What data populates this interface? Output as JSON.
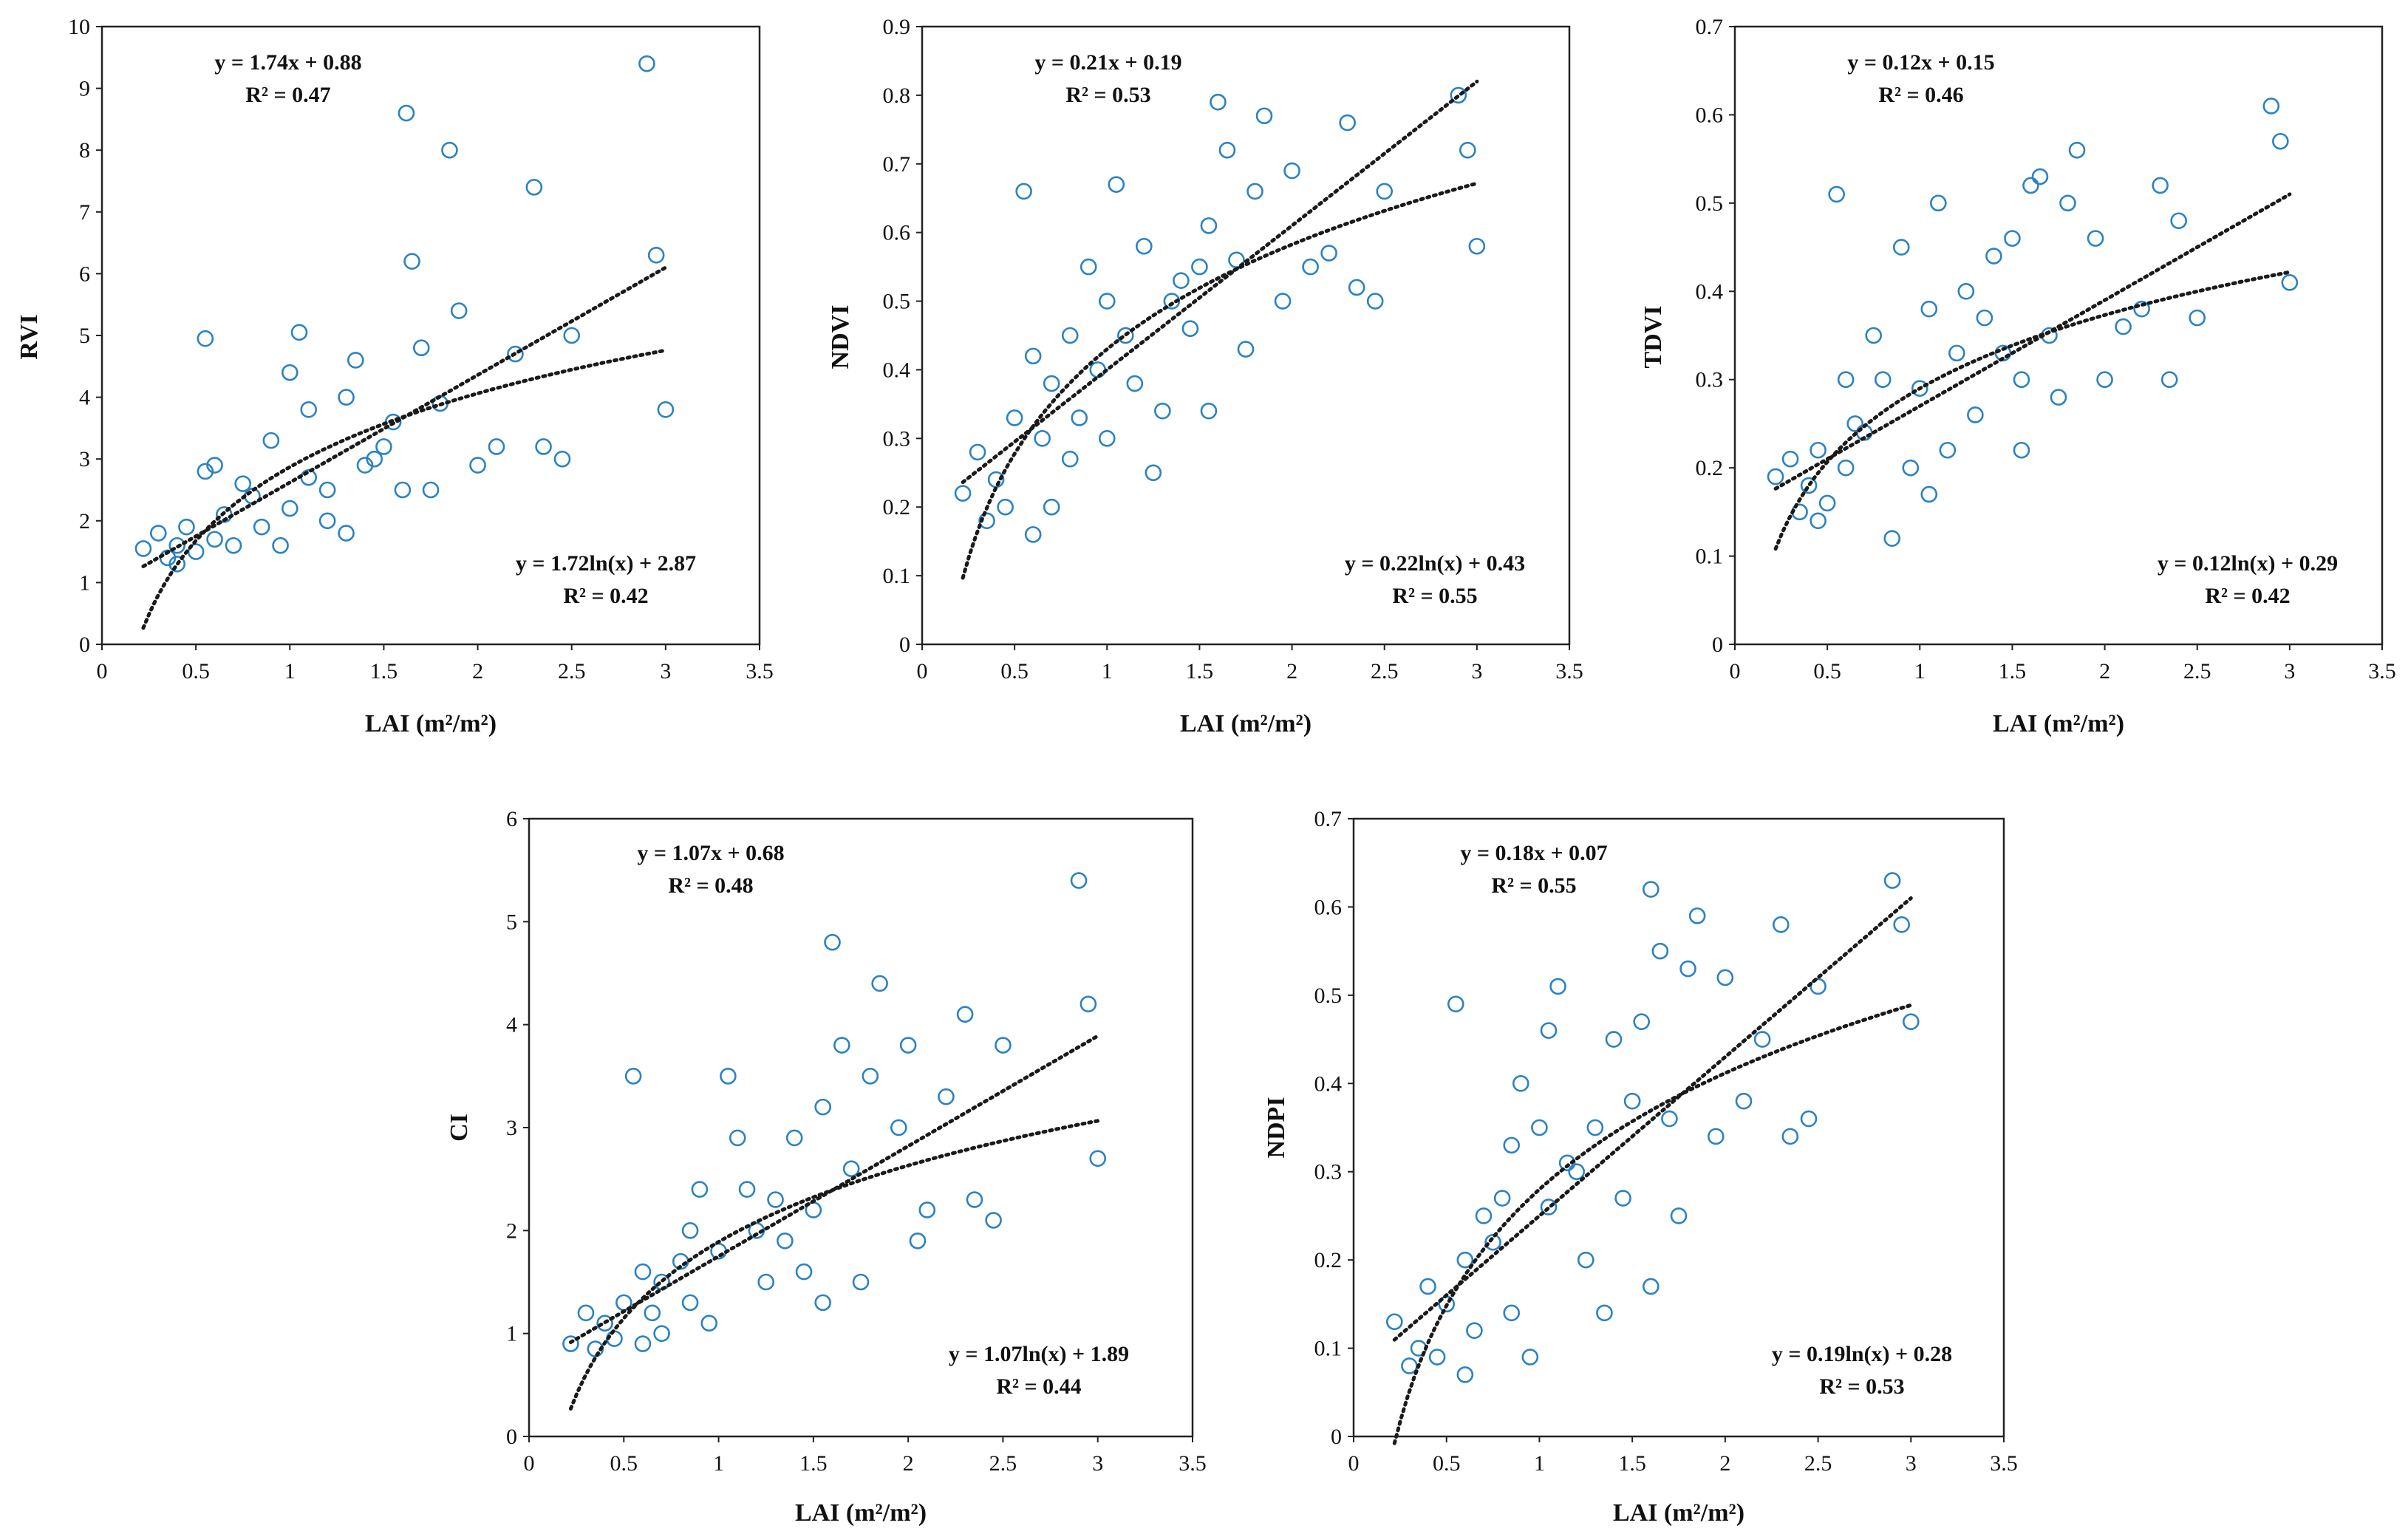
{
  "figure": {
    "x_label": "LAI (m²/m²)"
  },
  "chart_data": [
    {
      "type": "scatter",
      "ylabel": "RVI",
      "xlabel": "LAI (m²/m²)",
      "xlim": [
        0,
        3.5
      ],
      "ylim": [
        0,
        10
      ],
      "xticks": [
        0,
        0.5,
        1,
        1.5,
        2,
        2.5,
        3,
        3.5
      ],
      "xtick_labels": [
        "0",
        "0.5",
        "1",
        "1.5",
        "2",
        "2.5",
        "3",
        "3.5"
      ],
      "yticks": [
        0,
        1,
        2,
        3,
        4,
        5,
        6,
        7,
        8,
        9,
        10
      ],
      "ytick_labels": [
        "0",
        "1",
        "2",
        "3",
        "4",
        "5",
        "6",
        "7",
        "8",
        "9",
        "10"
      ],
      "linear": {
        "a": 1.74,
        "b": 0.88,
        "equation": "y = 1.74x + 0.88",
        "r2": "R² = 0.47"
      },
      "log": {
        "a": 1.72,
        "b": 2.87,
        "equation": "y = 1.72ln(x) + 2.87",
        "r2": "R² = 0.42"
      },
      "fit_range": [
        0.22,
        3.0
      ],
      "points": [
        [
          0.22,
          1.55
        ],
        [
          0.3,
          1.8
        ],
        [
          0.35,
          1.4
        ],
        [
          0.4,
          1.6
        ],
        [
          0.45,
          1.9
        ],
        [
          0.5,
          1.5
        ],
        [
          0.55,
          2.8
        ],
        [
          0.6,
          1.7
        ],
        [
          0.65,
          2.1
        ],
        [
          0.7,
          1.6
        ],
        [
          0.8,
          2.4
        ],
        [
          0.85,
          1.9
        ],
        [
          0.9,
          3.3
        ],
        [
          1.0,
          2.2
        ],
        [
          1.05,
          5.05
        ],
        [
          1.1,
          3.8
        ],
        [
          1.2,
          2.5
        ],
        [
          1.3,
          4.0
        ],
        [
          1.4,
          2.9
        ],
        [
          1.5,
          3.2
        ],
        [
          1.55,
          3.6
        ],
        [
          1.6,
          2.5
        ],
        [
          1.65,
          6.2
        ],
        [
          1.7,
          4.8
        ],
        [
          1.8,
          3.9
        ],
        [
          1.9,
          5.4
        ],
        [
          2.0,
          2.9
        ],
        [
          2.1,
          3.2
        ],
        [
          2.2,
          4.7
        ],
        [
          2.3,
          7.4
        ],
        [
          2.35,
          3.2
        ],
        [
          2.45,
          3.0
        ],
        [
          2.5,
          5.0
        ],
        [
          2.9,
          9.4
        ],
        [
          2.95,
          6.3
        ],
        [
          3.0,
          3.8
        ],
        [
          1.62,
          8.6
        ],
        [
          1.85,
          8.0
        ],
        [
          0.55,
          4.95
        ],
        [
          1.0,
          4.4
        ],
        [
          1.35,
          4.6
        ],
        [
          1.2,
          2.0
        ],
        [
          0.75,
          2.6
        ],
        [
          1.45,
          3.0
        ],
        [
          0.4,
          1.3
        ],
        [
          0.95,
          1.6
        ],
        [
          1.1,
          2.7
        ],
        [
          1.75,
          2.5
        ],
        [
          0.6,
          2.9
        ],
        [
          1.3,
          1.8
        ]
      ]
    },
    {
      "type": "scatter",
      "ylabel": "NDVI",
      "xlabel": "LAI (m²/m²)",
      "xlim": [
        0,
        3.5
      ],
      "ylim": [
        0,
        0.9
      ],
      "xticks": [
        0,
        0.5,
        1,
        1.5,
        2,
        2.5,
        3,
        3.5
      ],
      "xtick_labels": [
        "0",
        "0.5",
        "1",
        "1.5",
        "2",
        "2.5",
        "3",
        "3.5"
      ],
      "yticks": [
        0,
        0.1,
        0.2,
        0.3,
        0.4,
        0.5,
        0.6,
        0.7,
        0.8,
        0.9
      ],
      "ytick_labels": [
        "0",
        "0.1",
        "0.2",
        "0.3",
        "0.4",
        "0.5",
        "0.6",
        "0.7",
        "0.8",
        "0.9"
      ],
      "linear": {
        "a": 0.21,
        "b": 0.19,
        "equation": "y = 0.21x + 0.19",
        "r2": "R² = 0.53"
      },
      "log": {
        "a": 0.22,
        "b": 0.43,
        "equation": "y = 0.22ln(x) + 0.43",
        "r2": "R² = 0.55"
      },
      "fit_range": [
        0.22,
        3.0
      ],
      "points": [
        [
          0.22,
          0.22
        ],
        [
          0.3,
          0.28
        ],
        [
          0.35,
          0.18
        ],
        [
          0.4,
          0.24
        ],
        [
          0.45,
          0.2
        ],
        [
          0.5,
          0.33
        ],
        [
          0.55,
          0.66
        ],
        [
          0.6,
          0.42
        ],
        [
          0.65,
          0.3
        ],
        [
          0.7,
          0.38
        ],
        [
          0.8,
          0.45
        ],
        [
          0.85,
          0.33
        ],
        [
          0.9,
          0.55
        ],
        [
          1.0,
          0.5
        ],
        [
          1.05,
          0.67
        ],
        [
          1.1,
          0.45
        ],
        [
          1.2,
          0.58
        ],
        [
          1.3,
          0.34
        ],
        [
          1.4,
          0.53
        ],
        [
          1.5,
          0.55
        ],
        [
          1.55,
          0.61
        ],
        [
          1.6,
          0.79
        ],
        [
          1.65,
          0.72
        ],
        [
          1.7,
          0.56
        ],
        [
          1.8,
          0.66
        ],
        [
          1.85,
          0.77
        ],
        [
          1.95,
          0.5
        ],
        [
          2.0,
          0.69
        ],
        [
          2.1,
          0.55
        ],
        [
          2.2,
          0.57
        ],
        [
          2.3,
          0.76
        ],
        [
          2.35,
          0.52
        ],
        [
          2.5,
          0.66
        ],
        [
          2.9,
          0.8
        ],
        [
          2.95,
          0.72
        ],
        [
          3.0,
          0.58
        ],
        [
          0.7,
          0.2
        ],
        [
          1.0,
          0.3
        ],
        [
          1.25,
          0.25
        ],
        [
          0.95,
          0.4
        ],
        [
          1.45,
          0.46
        ],
        [
          0.6,
          0.16
        ],
        [
          1.15,
          0.38
        ],
        [
          1.35,
          0.5
        ],
        [
          1.75,
          0.43
        ],
        [
          0.8,
          0.27
        ],
        [
          1.55,
          0.34
        ],
        [
          2.45,
          0.5
        ]
      ]
    },
    {
      "type": "scatter",
      "ylabel": "TDVI",
      "xlabel": "LAI (m²/m²)",
      "xlim": [
        0,
        3.5
      ],
      "ylim": [
        0,
        0.7
      ],
      "xticks": [
        0,
        0.5,
        1,
        1.5,
        2,
        2.5,
        3,
        3.5
      ],
      "xtick_labels": [
        "0",
        "0.5",
        "1",
        "1.5",
        "2",
        "2.5",
        "3",
        "3.5"
      ],
      "yticks": [
        0,
        0.1,
        0.2,
        0.3,
        0.4,
        0.5,
        0.6,
        0.7
      ],
      "ytick_labels": [
        "0",
        "0.1",
        "0.2",
        "0.3",
        "0.4",
        "0.5",
        "0.6",
        "0.7"
      ],
      "linear": {
        "a": 0.12,
        "b": 0.15,
        "equation": "y = 0.12x + 0.15",
        "r2": "R² = 0.46"
      },
      "log": {
        "a": 0.12,
        "b": 0.29,
        "equation": "y = 0.12ln(x) + 0.29",
        "r2": "R² = 0.42"
      },
      "fit_range": [
        0.22,
        3.0
      ],
      "points": [
        [
          0.22,
          0.19
        ],
        [
          0.3,
          0.21
        ],
        [
          0.35,
          0.15
        ],
        [
          0.4,
          0.18
        ],
        [
          0.45,
          0.22
        ],
        [
          0.5,
          0.16
        ],
        [
          0.55,
          0.51
        ],
        [
          0.6,
          0.2
        ],
        [
          0.65,
          0.25
        ],
        [
          0.7,
          0.24
        ],
        [
          0.8,
          0.3
        ],
        [
          0.85,
          0.12
        ],
        [
          0.9,
          0.45
        ],
        [
          1.0,
          0.29
        ],
        [
          1.05,
          0.38
        ],
        [
          1.1,
          0.5
        ],
        [
          1.2,
          0.33
        ],
        [
          1.3,
          0.26
        ],
        [
          1.4,
          0.44
        ],
        [
          1.5,
          0.46
        ],
        [
          1.55,
          0.3
        ],
        [
          1.6,
          0.52
        ],
        [
          1.65,
          0.53
        ],
        [
          1.7,
          0.35
        ],
        [
          1.8,
          0.5
        ],
        [
          1.85,
          0.56
        ],
        [
          1.95,
          0.46
        ],
        [
          2.0,
          0.3
        ],
        [
          2.1,
          0.36
        ],
        [
          2.2,
          0.38
        ],
        [
          2.3,
          0.52
        ],
        [
          2.35,
          0.3
        ],
        [
          2.5,
          0.37
        ],
        [
          2.9,
          0.61
        ],
        [
          2.95,
          0.57
        ],
        [
          3.0,
          0.41
        ],
        [
          0.75,
          0.35
        ],
        [
          1.15,
          0.22
        ],
        [
          1.25,
          0.4
        ],
        [
          0.95,
          0.2
        ],
        [
          1.45,
          0.33
        ],
        [
          1.75,
          0.28
        ],
        [
          0.6,
          0.3
        ],
        [
          1.35,
          0.37
        ],
        [
          2.4,
          0.48
        ],
        [
          1.05,
          0.17
        ],
        [
          1.55,
          0.22
        ],
        [
          0.45,
          0.14
        ]
      ]
    },
    {
      "type": "scatter",
      "ylabel": "CI",
      "xlabel": "LAI (m²/m²)",
      "xlim": [
        0,
        3.5
      ],
      "ylim": [
        0,
        6
      ],
      "xticks": [
        0,
        0.5,
        1,
        1.5,
        2,
        2.5,
        3,
        3.5
      ],
      "xtick_labels": [
        "0",
        "0.5",
        "1",
        "1.5",
        "2",
        "2.5",
        "3",
        "3.5"
      ],
      "yticks": [
        0,
        1,
        2,
        3,
        4,
        5,
        6
      ],
      "ytick_labels": [
        "0",
        "1",
        "2",
        "3",
        "4",
        "5",
        "6"
      ],
      "linear": {
        "a": 1.07,
        "b": 0.68,
        "equation": "y = 1.07x + 0.68",
        "r2": "R² = 0.48"
      },
      "log": {
        "a": 1.07,
        "b": 1.89,
        "equation": "y = 1.07ln(x) + 1.89",
        "r2": "R² = 0.44"
      },
      "fit_range": [
        0.22,
        3.0
      ],
      "points": [
        [
          0.22,
          0.9
        ],
        [
          0.3,
          1.2
        ],
        [
          0.35,
          0.85
        ],
        [
          0.4,
          1.1
        ],
        [
          0.45,
          0.95
        ],
        [
          0.5,
          1.3
        ],
        [
          0.55,
          3.5
        ],
        [
          0.6,
          1.6
        ],
        [
          0.65,
          1.2
        ],
        [
          0.7,
          1.5
        ],
        [
          0.8,
          1.7
        ],
        [
          0.85,
          1.3
        ],
        [
          0.9,
          2.4
        ],
        [
          1.0,
          1.8
        ],
        [
          1.05,
          3.5
        ],
        [
          1.1,
          2.9
        ],
        [
          1.2,
          2.0
        ],
        [
          1.3,
          2.3
        ],
        [
          1.4,
          2.9
        ],
        [
          1.5,
          2.2
        ],
        [
          1.55,
          3.2
        ],
        [
          1.6,
          4.8
        ],
        [
          1.65,
          3.8
        ],
        [
          1.7,
          2.6
        ],
        [
          1.8,
          3.5
        ],
        [
          1.85,
          4.4
        ],
        [
          1.95,
          3.0
        ],
        [
          2.0,
          3.8
        ],
        [
          2.1,
          2.2
        ],
        [
          2.2,
          3.3
        ],
        [
          2.3,
          4.1
        ],
        [
          2.35,
          2.3
        ],
        [
          2.5,
          3.8
        ],
        [
          2.9,
          5.4
        ],
        [
          2.95,
          4.2
        ],
        [
          3.0,
          2.7
        ],
        [
          0.7,
          1.0
        ],
        [
          0.95,
          1.1
        ],
        [
          1.25,
          1.5
        ],
        [
          1.45,
          1.6
        ],
        [
          1.75,
          1.5
        ],
        [
          1.15,
          2.4
        ],
        [
          1.35,
          1.9
        ],
        [
          0.6,
          0.9
        ],
        [
          1.55,
          1.3
        ],
        [
          2.05,
          1.9
        ],
        [
          2.45,
          2.1
        ],
        [
          0.85,
          2.0
        ]
      ]
    },
    {
      "type": "scatter",
      "ylabel": "NDPI",
      "xlabel": "LAI (m²/m²)",
      "xlim": [
        0,
        3.5
      ],
      "ylim": [
        0,
        0.7
      ],
      "xticks": [
        0,
        0.5,
        1,
        1.5,
        2,
        2.5,
        3,
        3.5
      ],
      "xtick_labels": [
        "0",
        "0.5",
        "1",
        "1.5",
        "2",
        "2.5",
        "3",
        "3.5"
      ],
      "yticks": [
        0,
        0.1,
        0.2,
        0.3,
        0.4,
        0.5,
        0.6,
        0.7
      ],
      "ytick_labels": [
        "0",
        "0.1",
        "0.2",
        "0.3",
        "0.4",
        "0.5",
        "0.6",
        "0.7"
      ],
      "linear": {
        "a": 0.18,
        "b": 0.07,
        "equation": "y = 0.18x + 0.07",
        "r2": "R² = 0.55"
      },
      "log": {
        "a": 0.19,
        "b": 0.28,
        "equation": "y = 0.19ln(x) + 0.28",
        "r2": "R² = 0.53"
      },
      "fit_range": [
        0.22,
        3.0
      ],
      "points": [
        [
          0.22,
          0.13
        ],
        [
          0.3,
          0.08
        ],
        [
          0.35,
          0.1
        ],
        [
          0.4,
          0.17
        ],
        [
          0.45,
          0.09
        ],
        [
          0.5,
          0.15
        ],
        [
          0.55,
          0.49
        ],
        [
          0.6,
          0.2
        ],
        [
          0.65,
          0.12
        ],
        [
          0.7,
          0.25
        ],
        [
          0.8,
          0.27
        ],
        [
          0.85,
          0.14
        ],
        [
          0.9,
          0.4
        ],
        [
          1.0,
          0.35
        ],
        [
          1.05,
          0.46
        ],
        [
          1.1,
          0.51
        ],
        [
          1.2,
          0.3
        ],
        [
          1.3,
          0.35
        ],
        [
          1.4,
          0.45
        ],
        [
          1.5,
          0.38
        ],
        [
          1.55,
          0.47
        ],
        [
          1.6,
          0.62
        ],
        [
          1.65,
          0.55
        ],
        [
          1.7,
          0.36
        ],
        [
          1.8,
          0.53
        ],
        [
          1.85,
          0.59
        ],
        [
          1.95,
          0.34
        ],
        [
          2.0,
          0.52
        ],
        [
          2.1,
          0.38
        ],
        [
          2.2,
          0.45
        ],
        [
          2.3,
          0.58
        ],
        [
          2.35,
          0.34
        ],
        [
          2.5,
          0.51
        ],
        [
          2.9,
          0.63
        ],
        [
          2.95,
          0.58
        ],
        [
          3.0,
          0.47
        ],
        [
          0.75,
          0.22
        ],
        [
          1.25,
          0.2
        ],
        [
          1.45,
          0.27
        ],
        [
          0.95,
          0.09
        ],
        [
          1.15,
          0.31
        ],
        [
          1.75,
          0.25
        ],
        [
          1.35,
          0.14
        ],
        [
          0.6,
          0.07
        ],
        [
          1.05,
          0.26
        ],
        [
          2.45,
          0.36
        ],
        [
          0.85,
          0.33
        ],
        [
          1.6,
          0.17
        ]
      ]
    }
  ]
}
